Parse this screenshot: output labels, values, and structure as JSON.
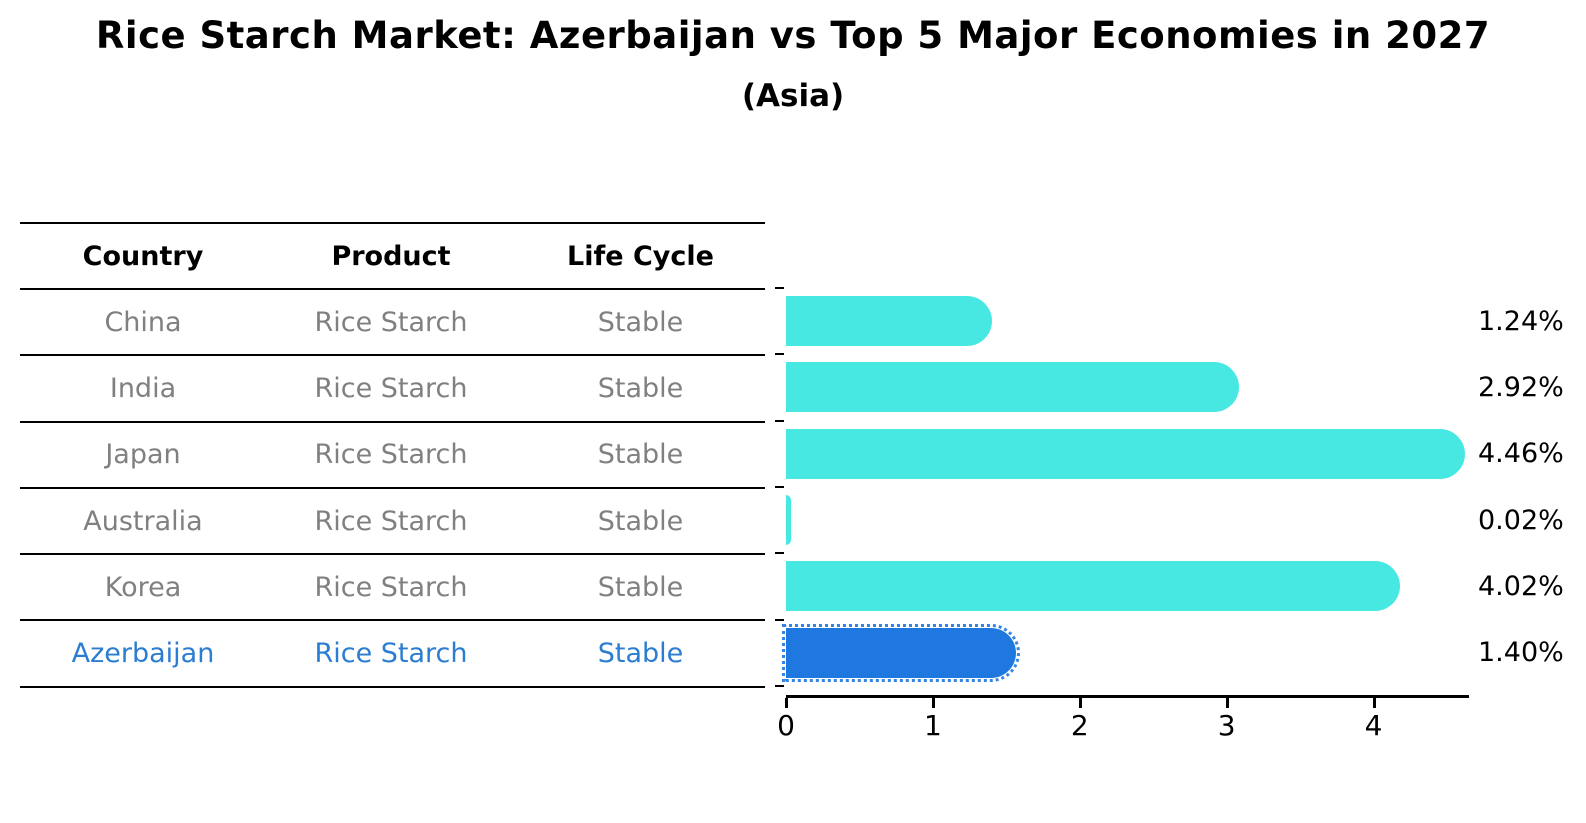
{
  "title": "Rice Starch Market: Azerbaijan vs Top 5 Major Economies in 2027",
  "subtitle": "(Asia)",
  "table": {
    "headers": [
      "Country",
      "Product",
      "Life Cycle"
    ],
    "rows": [
      {
        "country": "China",
        "product": "Rice Starch",
        "life_cycle": "Stable",
        "highlight": false
      },
      {
        "country": "India",
        "product": "Rice Starch",
        "life_cycle": "Stable",
        "highlight": false
      },
      {
        "country": "Japan",
        "product": "Rice Starch",
        "life_cycle": "Stable",
        "highlight": false
      },
      {
        "country": "Australia",
        "product": "Rice Starch",
        "life_cycle": "Stable",
        "highlight": false
      },
      {
        "country": "Korea",
        "product": "Rice Starch",
        "life_cycle": "Stable",
        "highlight": false
      },
      {
        "country": "Azerbaijan",
        "product": "Rice Starch",
        "life_cycle": "Stable",
        "highlight": true
      }
    ]
  },
  "chart_data": {
    "type": "bar",
    "orientation": "horizontal",
    "title": "Rice Starch Market: Azerbaijan vs Top 5 Major Economies in 2027",
    "subtitle": "(Asia)",
    "categories": [
      "China",
      "India",
      "Japan",
      "Australia",
      "Korea",
      "Azerbaijan"
    ],
    "values": [
      1.24,
      2.92,
      4.46,
      0.02,
      4.02,
      1.4
    ],
    "value_labels": [
      "1.24%",
      "2.92%",
      "4.46%",
      "0.02%",
      "4.02%",
      "1.40%"
    ],
    "highlight_index": 5,
    "xlabel": "",
    "ylabel": "",
    "xlim": [
      0,
      4.65
    ],
    "x_ticks": [
      "0",
      "1",
      "2",
      "3",
      "4"
    ],
    "grid": false,
    "legend": false,
    "colors": {
      "bar_default": "#47e8e2",
      "bar_highlight": "#1f78e0",
      "highlight_text": "#2b7dd2",
      "row_text": "#808080",
      "axis": "#000000"
    }
  }
}
